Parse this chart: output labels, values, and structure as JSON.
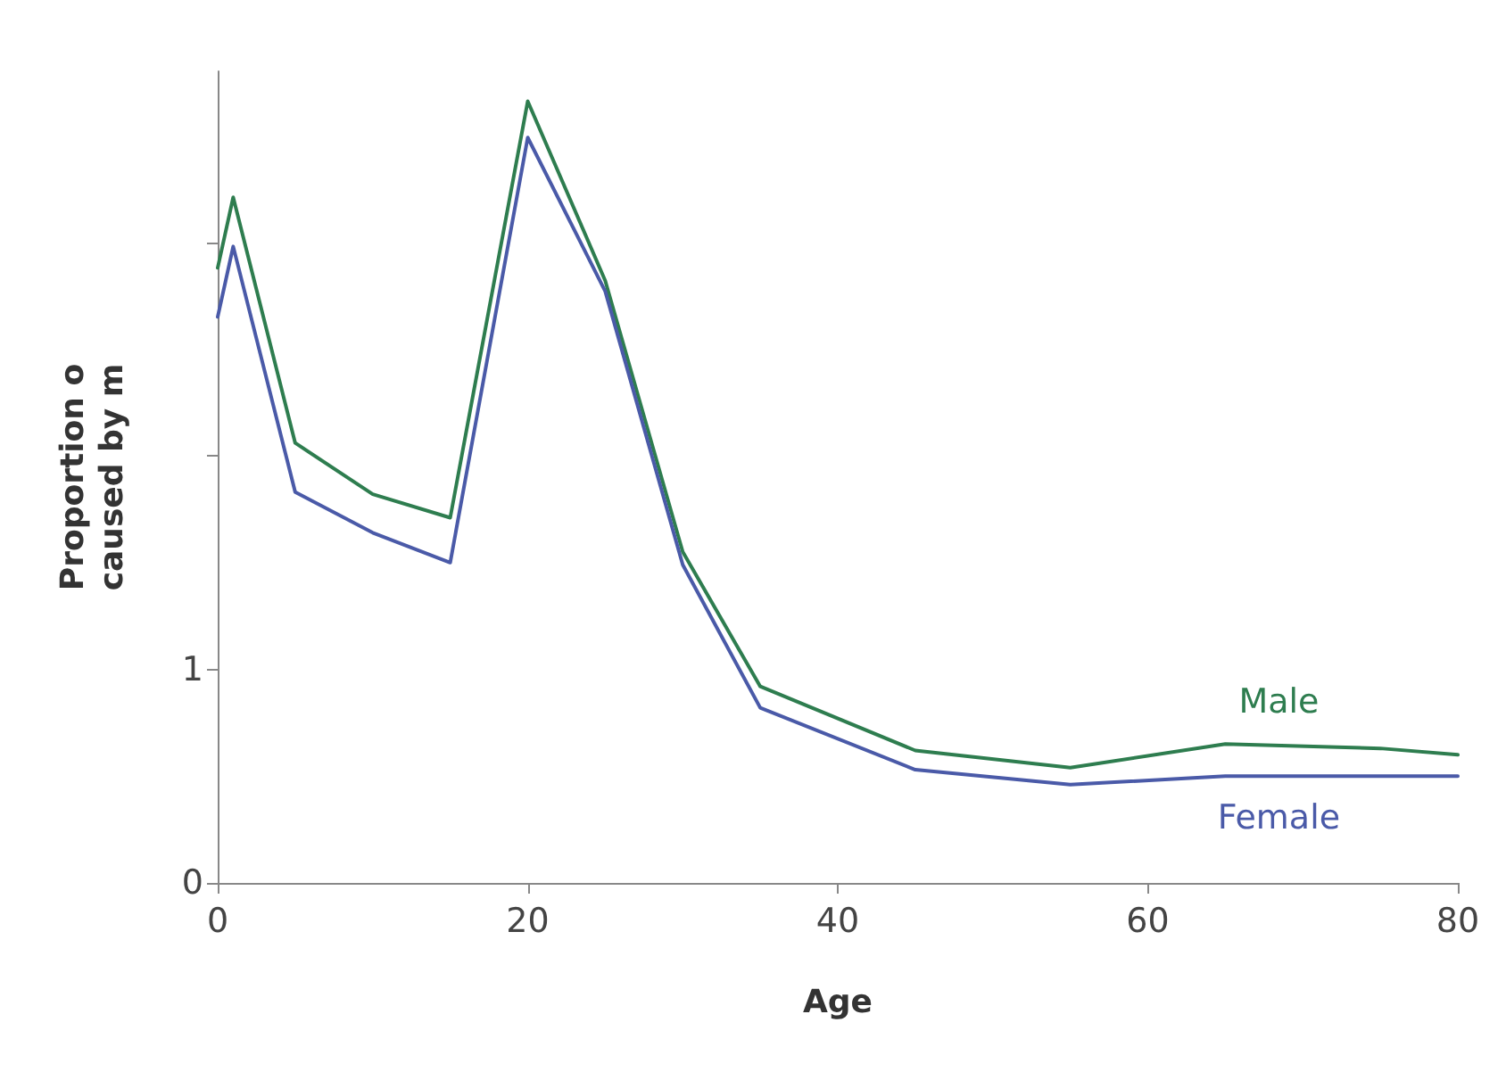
{
  "chart_data": {
    "type": "line",
    "xlabel": "Age",
    "ylabel": "Proportion o\ncaused by m",
    "x": [
      0,
      1,
      5,
      10,
      15,
      20,
      25,
      30,
      35,
      45,
      55,
      65,
      75,
      80
    ],
    "series": [
      {
        "name": "Male",
        "color": "#2e7d4f",
        "values": [
          2.88,
          3.21,
          2.06,
          1.82,
          1.71,
          3.66,
          2.82,
          1.55,
          0.92,
          0.62,
          0.54,
          0.65,
          0.63,
          0.6
        ]
      },
      {
        "name": "Female",
        "color": "#4a5aa8",
        "values": [
          2.65,
          2.98,
          1.83,
          1.64,
          1.5,
          3.49,
          2.77,
          1.49,
          0.82,
          0.53,
          0.46,
          0.5,
          0.5,
          0.5
        ]
      }
    ],
    "xlim": [
      0,
      80
    ],
    "xticks": [
      0,
      20,
      40,
      60,
      80
    ],
    "ylim": [
      0,
      3.8
    ],
    "yticks": [
      0,
      1,
      {
        "value": 2,
        "label": null
      },
      {
        "value": 3,
        "label": null
      }
    ],
    "grid": false,
    "legend": false,
    "marker": "none",
    "line_style": "solid"
  }
}
